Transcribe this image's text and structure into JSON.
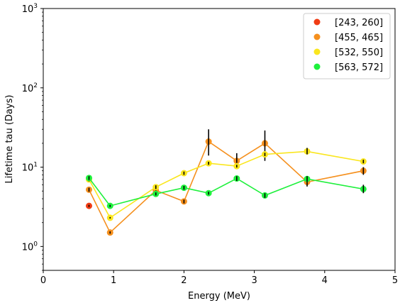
{
  "chart_data": {
    "type": "scatter",
    "title": "",
    "xlabel": "Energy (MeV)",
    "ylabel": "Lifetime tau (Days)",
    "xlim": [
      0,
      5
    ],
    "ylim": [
      0.5,
      1000
    ],
    "yscale": "log",
    "grid": false,
    "legend_position": "top-right",
    "x_ticks": [
      {
        "value": 0,
        "label": "0"
      },
      {
        "value": 1,
        "label": "1"
      },
      {
        "value": 2,
        "label": "2"
      },
      {
        "value": 3,
        "label": "3"
      },
      {
        "value": 4,
        "label": "4"
      },
      {
        "value": 5,
        "label": "5"
      }
    ],
    "y_ticks": [
      {
        "value": 1,
        "base": "10",
        "exp": "0"
      },
      {
        "value": 10,
        "base": "10",
        "exp": "1"
      },
      {
        "value": 100,
        "base": "10",
        "exp": "2"
      },
      {
        "value": 1000,
        "base": "10",
        "exp": "3"
      }
    ],
    "series": [
      {
        "name": "[243, 260]",
        "color": "#f03c14",
        "line": false,
        "points": [
          {
            "x": 0.65,
            "y": 3.25,
            "lo": 3.15,
            "hi": 3.35
          }
        ]
      },
      {
        "name": "[455, 465]",
        "color": "#f5901e",
        "line": true,
        "points": [
          {
            "x": 0.65,
            "y": 5.2,
            "lo": 4.9,
            "hi": 5.5
          },
          {
            "x": 0.95,
            "y": 1.5,
            "lo": 1.45,
            "hi": 1.55
          },
          {
            "x": 1.6,
            "y": 5.1,
            "lo": 4.7,
            "hi": 5.5
          },
          {
            "x": 2.0,
            "y": 3.7,
            "lo": 3.5,
            "hi": 3.9
          },
          {
            "x": 2.35,
            "y": 21.0,
            "lo": 14.0,
            "hi": 30.0
          },
          {
            "x": 2.75,
            "y": 12.0,
            "lo": 9.5,
            "hi": 15.0
          },
          {
            "x": 3.15,
            "y": 20.0,
            "lo": 12.0,
            "hi": 29.0
          },
          {
            "x": 3.75,
            "y": 6.5,
            "lo": 5.7,
            "hi": 7.5
          },
          {
            "x": 4.55,
            "y": 9.0,
            "lo": 8.0,
            "hi": 10.0
          }
        ]
      },
      {
        "name": "[532, 550]",
        "color": "#fae61e",
        "line": true,
        "points": [
          {
            "x": 0.65,
            "y": 7.0,
            "lo": 6.6,
            "hi": 7.4
          },
          {
            "x": 0.95,
            "y": 2.3,
            "lo": 2.25,
            "hi": 2.35
          },
          {
            "x": 1.6,
            "y": 5.6,
            "lo": 5.3,
            "hi": 5.9
          },
          {
            "x": 2.0,
            "y": 8.4,
            "lo": 8.0,
            "hi": 8.8
          },
          {
            "x": 2.35,
            "y": 11.2,
            "lo": 10.7,
            "hi": 11.7
          },
          {
            "x": 2.75,
            "y": 10.3,
            "lo": 9.9,
            "hi": 10.7
          },
          {
            "x": 3.15,
            "y": 14.5,
            "lo": 13.8,
            "hi": 15.2
          },
          {
            "x": 3.75,
            "y": 15.8,
            "lo": 14.5,
            "hi": 17.5
          },
          {
            "x": 4.55,
            "y": 11.8,
            "lo": 11.2,
            "hi": 12.4
          }
        ]
      },
      {
        "name": "[563, 572]",
        "color": "#1ef03c",
        "line": true,
        "points": [
          {
            "x": 0.65,
            "y": 7.3,
            "lo": 6.9,
            "hi": 7.7
          },
          {
            "x": 0.95,
            "y": 3.25,
            "lo": 3.15,
            "hi": 3.35
          },
          {
            "x": 1.6,
            "y": 4.6,
            "lo": 4.4,
            "hi": 4.8
          },
          {
            "x": 2.0,
            "y": 5.5,
            "lo": 5.2,
            "hi": 5.8
          },
          {
            "x": 2.35,
            "y": 4.7,
            "lo": 4.5,
            "hi": 4.9
          },
          {
            "x": 2.75,
            "y": 7.2,
            "lo": 6.7,
            "hi": 7.7
          },
          {
            "x": 3.15,
            "y": 4.4,
            "lo": 4.1,
            "hi": 4.7
          },
          {
            "x": 3.75,
            "y": 7.1,
            "lo": 6.5,
            "hi": 7.7
          },
          {
            "x": 4.55,
            "y": 5.3,
            "lo": 4.7,
            "hi": 6.0
          }
        ]
      }
    ]
  }
}
